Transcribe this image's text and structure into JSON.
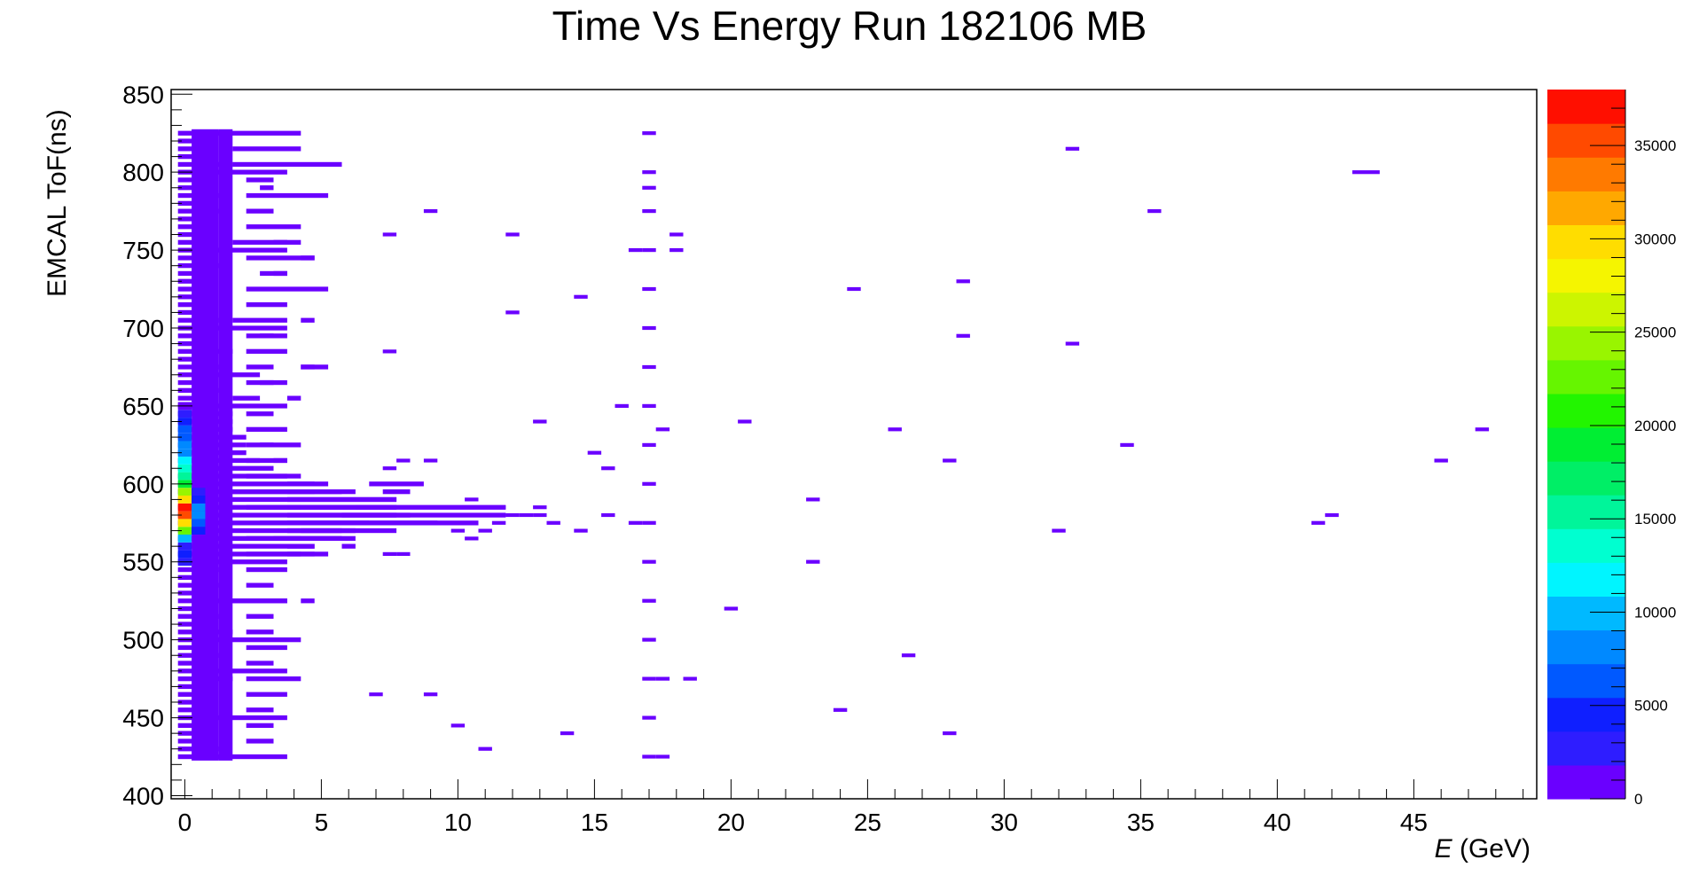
{
  "chart_data": {
    "type": "heatmap",
    "title": "Time Vs Energy Run 182106 MB",
    "xlabel_var": "E",
    "xlabel_unit": " (GeV)",
    "ylabel": "EMCAL ToF(ns)",
    "xlim": [
      -0.5,
      49.5
    ],
    "ylim": [
      398,
      853
    ],
    "x_ticks": [
      "0",
      "5",
      "10",
      "15",
      "20",
      "25",
      "30",
      "35",
      "40",
      "45"
    ],
    "y_ticks": [
      "400",
      "450",
      "500",
      "550",
      "600",
      "650",
      "700",
      "750",
      "800",
      "850"
    ],
    "z_range": [
      0,
      38000
    ],
    "z_ticks": [
      "0",
      "5000",
      "10000",
      "15000",
      "20000",
      "25000",
      "30000",
      "35000"
    ],
    "palette": [
      "#6a00ff",
      "#2e1dff",
      "#0f1fff",
      "#0059ff",
      "#0089ff",
      "#00b9ff",
      "#00f5ff",
      "#00ffd0",
      "#00f59a",
      "#00ee66",
      "#00ee33",
      "#22f500",
      "#66f500",
      "#99f500",
      "#ccf500",
      "#f5f500",
      "#ffdd00",
      "#ffa800",
      "#ff7a00",
      "#ff4a00",
      "#ff0f00"
    ],
    "bin_width_x": 0.5,
    "bin_height_y": 5,
    "core_columns": [
      {
        "x": 0.5,
        "y0": 425,
        "y1": 825,
        "value": 300
      },
      {
        "x": 1.0,
        "y0": 425,
        "y1": 825,
        "value": 250
      },
      {
        "x": 1.5,
        "y0": 425,
        "y1": 825,
        "value": 150
      }
    ],
    "hot_bins": [
      {
        "x": 0.0,
        "y": 560,
        "value": 2000
      },
      {
        "x": 0.0,
        "y": 565,
        "value": 10000
      },
      {
        "x": 0.0,
        "y": 570,
        "value": 22000
      },
      {
        "x": 0.0,
        "y": 575,
        "value": 30000
      },
      {
        "x": 0.0,
        "y": 580,
        "value": 36000
      },
      {
        "x": 0.0,
        "y": 585,
        "value": 37500
      },
      {
        "x": 0.0,
        "y": 590,
        "value": 30000
      },
      {
        "x": 0.0,
        "y": 595,
        "value": 24000
      },
      {
        "x": 0.0,
        "y": 600,
        "value": 19000
      },
      {
        "x": 0.0,
        "y": 605,
        "value": 15000
      },
      {
        "x": 0.0,
        "y": 610,
        "value": 13000
      },
      {
        "x": 0.0,
        "y": 615,
        "value": 11000
      },
      {
        "x": 0.0,
        "y": 620,
        "value": 9000
      },
      {
        "x": 0.0,
        "y": 625,
        "value": 8000
      },
      {
        "x": 0.0,
        "y": 630,
        "value": 7000
      },
      {
        "x": 0.0,
        "y": 635,
        "value": 6000
      },
      {
        "x": 0.0,
        "y": 640,
        "value": 4000
      },
      {
        "x": 0.0,
        "y": 645,
        "value": 2500
      },
      {
        "x": 0.0,
        "y": 650,
        "value": 1500
      },
      {
        "x": 0.0,
        "y": 555,
        "value": 5000
      },
      {
        "x": 0.0,
        "y": 550,
        "value": 2500
      },
      {
        "x": 0.5,
        "y": 570,
        "value": 4000
      },
      {
        "x": 0.5,
        "y": 575,
        "value": 6000
      },
      {
        "x": 0.5,
        "y": 580,
        "value": 8000
      },
      {
        "x": 0.5,
        "y": 585,
        "value": 9000
      },
      {
        "x": 0.5,
        "y": 590,
        "value": 5000
      },
      {
        "x": 0.5,
        "y": 595,
        "value": 2500
      }
    ],
    "low_bins": [
      [
        0,
        425,
        4
      ],
      [
        0,
        430,
        1.5
      ],
      [
        0,
        435,
        1
      ],
      [
        0,
        440,
        1
      ],
      [
        0,
        445,
        1
      ],
      [
        0,
        450,
        4
      ],
      [
        0,
        455,
        1
      ],
      [
        0,
        460,
        1
      ],
      [
        0,
        465,
        1
      ],
      [
        0,
        470,
        1
      ],
      [
        0,
        475,
        2
      ],
      [
        0,
        480,
        4
      ],
      [
        0,
        485,
        1
      ],
      [
        0,
        490,
        1.5
      ],
      [
        0,
        495,
        1
      ],
      [
        0,
        500,
        4.5
      ],
      [
        0,
        505,
        2
      ],
      [
        0,
        510,
        1
      ],
      [
        0,
        515,
        1.5
      ],
      [
        0,
        520,
        1
      ],
      [
        0,
        525,
        4
      ],
      [
        0,
        530,
        1
      ],
      [
        0,
        535,
        1.5
      ],
      [
        0,
        540,
        1
      ],
      [
        0,
        545,
        1.5
      ],
      [
        0,
        550,
        4
      ],
      [
        0,
        555,
        5
      ],
      [
        0,
        560,
        5
      ],
      [
        0,
        565,
        6
      ],
      [
        0,
        570,
        8
      ],
      [
        0,
        575,
        11
      ],
      [
        0,
        580,
        12
      ],
      [
        0,
        585,
        12
      ],
      [
        0,
        590,
        8
      ],
      [
        0,
        595,
        6
      ],
      [
        0,
        600,
        5
      ],
      [
        0,
        605,
        4
      ],
      [
        0,
        610,
        3.5
      ],
      [
        0,
        615,
        3
      ],
      [
        0,
        620,
        2.5
      ],
      [
        0,
        625,
        2.5
      ],
      [
        0,
        630,
        2.5
      ],
      [
        0,
        635,
        2
      ],
      [
        0,
        640,
        2
      ],
      [
        0,
        645,
        2
      ],
      [
        0,
        650,
        4
      ],
      [
        0,
        655,
        1
      ],
      [
        0,
        660,
        1.5
      ],
      [
        0,
        665,
        1
      ],
      [
        0,
        670,
        3
      ],
      [
        0,
        675,
        1.5
      ],
      [
        0,
        680,
        1
      ],
      [
        0,
        685,
        2
      ],
      [
        0,
        690,
        1
      ],
      [
        0,
        695,
        1
      ],
      [
        0,
        700,
        4
      ],
      [
        0,
        705,
        1.5
      ],
      [
        0,
        710,
        1
      ],
      [
        0,
        715,
        1
      ],
      [
        0,
        720,
        1
      ],
      [
        0,
        725,
        1
      ],
      [
        0,
        730,
        1
      ],
      [
        0,
        735,
        1
      ],
      [
        0,
        740,
        1.5
      ],
      [
        0,
        745,
        1
      ],
      [
        0,
        750,
        4
      ],
      [
        0,
        755,
        1
      ],
      [
        0,
        760,
        1
      ],
      [
        0,
        765,
        1
      ],
      [
        0,
        770,
        1
      ],
      [
        0,
        775,
        1.5
      ],
      [
        0,
        780,
        1
      ],
      [
        0,
        785,
        1.5
      ],
      [
        0,
        790,
        1
      ],
      [
        0,
        795,
        1
      ],
      [
        0,
        800,
        4
      ],
      [
        0,
        805,
        2
      ],
      [
        0,
        810,
        1
      ],
      [
        0,
        815,
        1
      ],
      [
        0,
        820,
        1
      ],
      [
        0,
        825,
        4.5
      ]
    ],
    "extra_segments": [
      [
        2.0,
        815,
        2.5
      ],
      [
        2.0,
        805,
        4
      ],
      [
        2.5,
        795,
        1
      ],
      [
        2.5,
        785,
        3
      ],
      [
        2.5,
        775,
        1
      ],
      [
        2.5,
        765,
        2
      ],
      [
        2.0,
        755,
        2.5
      ],
      [
        2.5,
        745,
        2.5
      ],
      [
        3.0,
        735,
        1
      ],
      [
        2.5,
        725,
        3
      ],
      [
        2.5,
        715,
        1.5
      ],
      [
        2.0,
        705,
        2
      ],
      [
        2.5,
        695,
        1
      ],
      [
        2.5,
        685,
        1.5
      ],
      [
        2.5,
        675,
        1
      ],
      [
        2.5,
        665,
        1
      ],
      [
        2.0,
        655,
        1
      ],
      [
        2.5,
        645,
        1
      ],
      [
        2.5,
        635,
        1.5
      ],
      [
        2.5,
        625,
        2
      ],
      [
        2.5,
        615,
        1.5
      ],
      [
        2.5,
        605,
        2
      ],
      [
        2.0,
        595,
        3
      ],
      [
        2.5,
        585,
        2
      ],
      [
        3.0,
        575,
        2
      ],
      [
        2.5,
        565,
        1.5
      ],
      [
        2.5,
        555,
        2
      ],
      [
        2.5,
        545,
        1.5
      ],
      [
        2.5,
        535,
        1
      ],
      [
        2.0,
        525,
        2
      ],
      [
        2.5,
        515,
        1
      ],
      [
        2.5,
        505,
        1
      ],
      [
        2.5,
        495,
        1.5
      ],
      [
        2.5,
        485,
        1
      ],
      [
        2.5,
        475,
        2
      ],
      [
        2.5,
        465,
        1.5
      ],
      [
        2.5,
        455,
        1
      ],
      [
        2.5,
        445,
        1
      ],
      [
        2.5,
        435,
        1
      ],
      [
        4.0,
        655,
        0.5
      ],
      [
        4.5,
        745,
        0.5
      ],
      [
        4.5,
        705,
        0.5
      ],
      [
        4.5,
        675,
        1
      ],
      [
        4.5,
        525,
        0.5
      ],
      [
        3.5,
        615,
        0.5
      ],
      [
        3.5,
        565,
        1
      ],
      [
        4.5,
        675,
        0.5
      ],
      [
        3.5,
        755,
        0.5
      ],
      [
        3.5,
        735,
        0.5
      ],
      [
        3.0,
        665,
        1
      ],
      [
        3.0,
        695,
        1
      ],
      [
        3.0,
        790,
        0.5
      ],
      [
        3.0,
        625,
        0.5
      ],
      [
        4.0,
        600,
        1.5
      ],
      [
        4.0,
        595,
        2.5
      ],
      [
        4.0,
        590,
        3
      ],
      [
        4.0,
        585,
        4
      ],
      [
        4.0,
        580,
        4.5
      ],
      [
        4.0,
        575,
        3
      ],
      [
        4.0,
        570,
        2
      ],
      [
        4.0,
        565,
        1.5
      ],
      [
        4.0,
        560,
        1
      ],
      [
        4.0,
        555,
        1.5
      ],
      [
        4.5,
        570,
        2
      ],
      [
        5.0,
        575,
        4.5
      ],
      [
        6.0,
        580,
        2
      ],
      [
        6.5,
        585,
        1.5
      ],
      [
        7.0,
        590,
        1
      ],
      [
        7.0,
        600,
        2
      ],
      [
        7.5,
        595,
        1
      ],
      [
        5.5,
        565,
        1
      ],
      [
        6.0,
        560,
        0.5
      ]
    ],
    "scatter_bins": [
      [
        9.0,
        775
      ],
      [
        7.5,
        760
      ],
      [
        7.5,
        685
      ],
      [
        8.0,
        615
      ],
      [
        7.5,
        610
      ],
      [
        9.0,
        615
      ],
      [
        10.5,
        585
      ],
      [
        10.5,
        590
      ],
      [
        11.5,
        585
      ],
      [
        11.5,
        580
      ],
      [
        12.5,
        580
      ],
      [
        13.0,
        580
      ],
      [
        13.0,
        585
      ],
      [
        13.5,
        575
      ],
      [
        14.5,
        570
      ],
      [
        15.5,
        580
      ],
      [
        16.5,
        575
      ],
      [
        16.0,
        650
      ],
      [
        14.0,
        440
      ],
      [
        11.0,
        430
      ],
      [
        10.0,
        445
      ],
      [
        9.0,
        465
      ],
      [
        7.0,
        465
      ],
      [
        7.5,
        555
      ],
      [
        8.0,
        555
      ],
      [
        8.5,
        580
      ],
      [
        9.0,
        575
      ],
      [
        10.0,
        570
      ],
      [
        10.5,
        565
      ],
      [
        11.0,
        570
      ],
      [
        11.5,
        575
      ],
      [
        12.0,
        580
      ],
      [
        17.0,
        825
      ],
      [
        17.0,
        800
      ],
      [
        17.0,
        790
      ],
      [
        17.0,
        775
      ],
      [
        17.0,
        750
      ],
      [
        17.0,
        725
      ],
      [
        17.0,
        700
      ],
      [
        17.0,
        675
      ],
      [
        17.0,
        650
      ],
      [
        17.0,
        625
      ],
      [
        17.0,
        600
      ],
      [
        17.0,
        575
      ],
      [
        17.0,
        550
      ],
      [
        17.0,
        525
      ],
      [
        17.0,
        500
      ],
      [
        17.0,
        475
      ],
      [
        17.5,
        475
      ],
      [
        17.0,
        450
      ],
      [
        17.0,
        425
      ],
      [
        17.5,
        425
      ],
      [
        18.0,
        760
      ],
      [
        18.0,
        750
      ],
      [
        17.5,
        635
      ],
      [
        18.5,
        475
      ],
      [
        20.0,
        520
      ],
      [
        20.5,
        640
      ],
      [
        23.0,
        590
      ],
      [
        23.0,
        550
      ],
      [
        24.5,
        725
      ],
      [
        24.0,
        455
      ],
      [
        26.0,
        635
      ],
      [
        26.5,
        490
      ],
      [
        28.0,
        440
      ],
      [
        28.0,
        615
      ],
      [
        28.5,
        730
      ],
      [
        28.5,
        695
      ],
      [
        32.0,
        570
      ],
      [
        32.5,
        815
      ],
      [
        32.5,
        690
      ],
      [
        34.5,
        625
      ],
      [
        35.5,
        775
      ],
      [
        41.5,
        575
      ],
      [
        42.0,
        580
      ],
      [
        43.0,
        800
      ],
      [
        43.5,
        800
      ],
      [
        46.0,
        615
      ],
      [
        47.5,
        635
      ],
      [
        12.0,
        710
      ],
      [
        14.5,
        720
      ],
      [
        12.0,
        760
      ],
      [
        13.0,
        640
      ],
      [
        16.5,
        750
      ],
      [
        15.0,
        620
      ],
      [
        15.5,
        610
      ]
    ]
  }
}
